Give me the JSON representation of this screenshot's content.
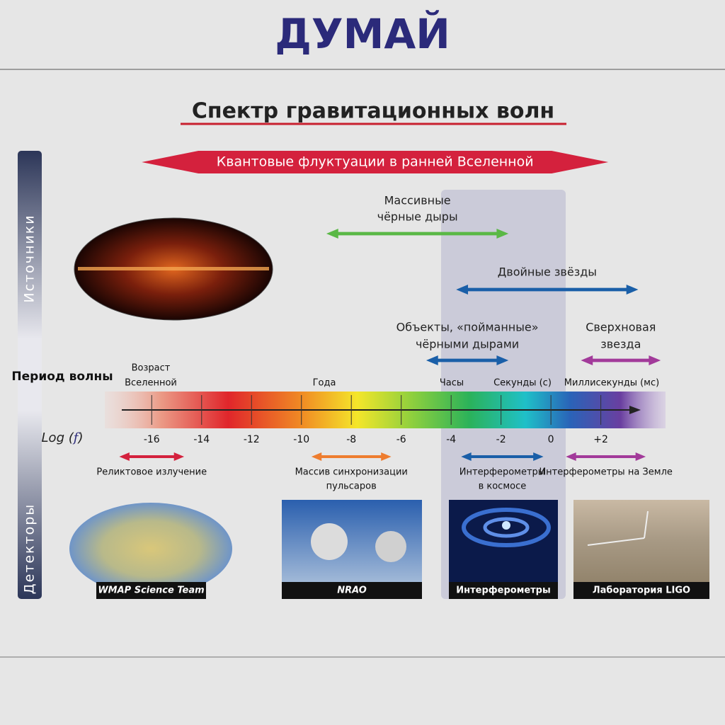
{
  "header": {
    "logo": "ДУМАЙ",
    "title": "Спектр гравитационных волн"
  },
  "side": {
    "sources": "Источники",
    "detectors": "Детекторы"
  },
  "axis": {
    "period_label": "Период волны",
    "log_label": [
      "Log",
      "(",
      "f",
      ")"
    ],
    "ticks": [
      -16,
      -14,
      -12,
      -10,
      -8,
      -6,
      -4,
      -2,
      0,
      {
        "value": 2,
        "label": "+2"
      }
    ],
    "xlim": [
      -17.2,
      3.6
    ],
    "periods": [
      [
        "Возраст",
        "Вселенной"
      ],
      [
        "Года"
      ],
      [
        "Часы"
      ],
      [
        "Секунды (с)"
      ],
      [
        "Миллисекунды (мс)"
      ]
    ]
  },
  "sources": [
    {
      "label": [
        "Квантовые флуктуации в ранней Вселенной"
      ],
      "from": -16.4,
      "to": 2.3,
      "color": "#d4213d"
    },
    {
      "label": [
        "Массивные",
        "чёрные дыры"
      ],
      "from": -9,
      "to": -1.7,
      "color": "#5ab846"
    },
    {
      "label": [
        "Двойные звёзды"
      ],
      "from": -3.8,
      "to": 3.5,
      "color": "#1a5fa8"
    },
    {
      "label": [
        "Объекты, «пойманные»",
        "чёрными дырами"
      ],
      "from": -5,
      "to": -1.7,
      "color": "#1a5fa8"
    },
    {
      "label": [
        "Сверхновая",
        "звезда"
      ],
      "from": 1.2,
      "to": 4.4,
      "color": "#a23a9a"
    }
  ],
  "detectors": [
    {
      "label": [
        "Реликтовое излучение"
      ],
      "from": -17.3,
      "to": -14.7,
      "color": "#d4213d"
    },
    {
      "label": [
        "Массив синхронизации",
        "пульсаров"
      ],
      "from": -9.6,
      "to": -6.4,
      "color": "#ee7d2f"
    },
    {
      "label": [
        "Интерферометры",
        "в космосе"
      ],
      "from": -3.6,
      "to": -0.3,
      "color": "#1a5fa8"
    },
    {
      "label": [
        "Интерферометры на Земле"
      ],
      "from": 0.6,
      "to": 3.8,
      "color": "#a23a9a"
    }
  ],
  "credits": [
    "WMAP Science Team",
    "NRAO",
    "Интерферометры",
    "Лаборатория LIGO"
  ]
}
